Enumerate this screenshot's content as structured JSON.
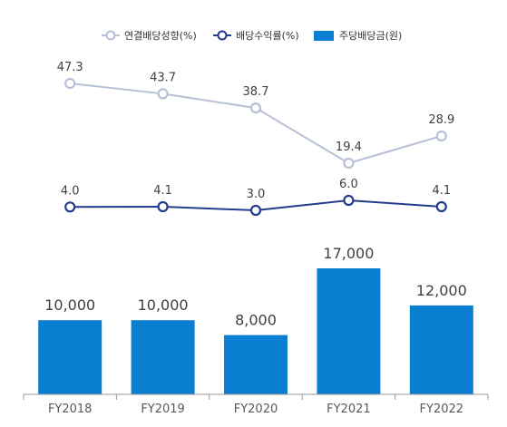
{
  "chart_data": {
    "type": "bar",
    "categories": [
      "FY2018",
      "FY2019",
      "FY2020",
      "FY2021",
      "FY2022"
    ],
    "series": [
      {
        "name": "연결배당성향(%)",
        "kind": "line",
        "color": "#b8c0d8",
        "values": [
          47.3,
          43.7,
          38.7,
          19.4,
          28.9
        ],
        "labels": [
          "47.3",
          "43.7",
          "38.7",
          "19.4",
          "28.9"
        ]
      },
      {
        "name": "배당수익률(%)",
        "kind": "line",
        "color": "#253c8c",
        "values": [
          4.0,
          4.1,
          3.0,
          6.0,
          4.1
        ],
        "labels": [
          "4.0",
          "4.1",
          "3.0",
          "6.0",
          "4.1"
        ]
      },
      {
        "name": "주당배당금(원)",
        "kind": "bar",
        "color": "#0a7fd2",
        "values": [
          10000,
          10000,
          8000,
          17000,
          12000
        ],
        "labels": [
          "10,000",
          "10,000",
          "8,000",
          "17,000",
          "12,000"
        ]
      }
    ],
    "legend_position": "top-right",
    "grid": false,
    "axis_color": "#999999"
  }
}
